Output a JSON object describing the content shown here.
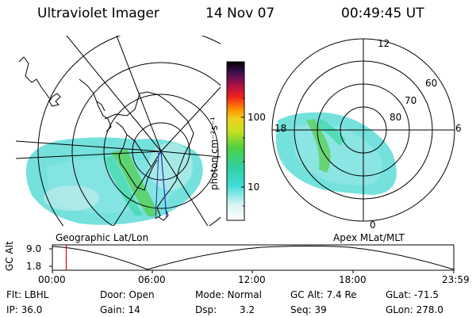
{
  "header": {
    "title": "Ultraviolet Imager",
    "date": "14 Nov 07",
    "time": "00:49:45 UT"
  },
  "left_panel": {
    "label": "Geographic Lat/Lon"
  },
  "right_panel": {
    "label": "Apex MLat/MLT",
    "mlt_labels": [
      "12",
      "18",
      "6",
      "0"
    ],
    "mlat_labels": [
      "60",
      "70",
      "80"
    ]
  },
  "colorbar": {
    "unit_label": "photon cm⁻²s⁻¹",
    "ticks": [
      "100",
      "10"
    ]
  },
  "altitude_plot": {
    "ylabel": "GC Alt",
    "yticks": [
      "9.0",
      "1.8"
    ],
    "xticks": [
      "00:00",
      "06:00",
      "12:00",
      "18:00",
      "23:59"
    ],
    "marker_color": "#e00000",
    "marker_time_hours": 0.83
  },
  "footer": {
    "flt": "Flt: LBHL",
    "door": "Door: Open",
    "mode": "Mode: Normal",
    "gc_alt": "GC Alt: 7.4 Re",
    "glat": "GLat: -71.5",
    "ip": "IP: 36.0",
    "gain": "Gain: 14",
    "dsp_label": "Dsp:",
    "dsp_value": "3.2",
    "seq": "Seq: 39",
    "glon": "GLon: 278.0"
  }
}
